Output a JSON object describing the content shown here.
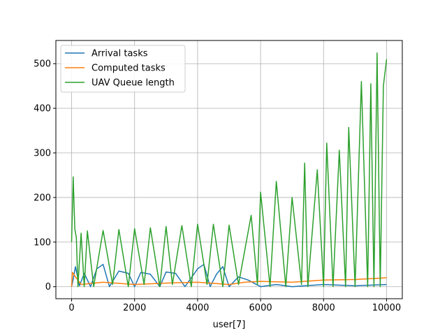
{
  "chart_data": {
    "type": "line",
    "title": "",
    "xlabel": "user[7]",
    "ylabel": "",
    "xlim": [
      -500,
      10500
    ],
    "ylim": [
      -27,
      552
    ],
    "xticks": [
      0,
      2000,
      4000,
      6000,
      8000,
      10000
    ],
    "yticks": [
      0,
      100,
      200,
      300,
      400,
      500
    ],
    "grid": true,
    "legend_position": "upper-left",
    "series": [
      {
        "name": "Arrival tasks",
        "color": "#1f77b4",
        "points": [
          [
            0,
            0
          ],
          [
            60,
            20
          ],
          [
            120,
            45
          ],
          [
            250,
            2
          ],
          [
            400,
            30
          ],
          [
            600,
            0
          ],
          [
            800,
            40
          ],
          [
            1000,
            50
          ],
          [
            1200,
            0
          ],
          [
            1500,
            35
          ],
          [
            1800,
            30
          ],
          [
            2000,
            0
          ],
          [
            2200,
            32
          ],
          [
            2500,
            28
          ],
          [
            2800,
            0
          ],
          [
            3000,
            33
          ],
          [
            3300,
            30
          ],
          [
            3600,
            0
          ],
          [
            3800,
            20
          ],
          [
            4000,
            40
          ],
          [
            4200,
            50
          ],
          [
            4400,
            0
          ],
          [
            4600,
            28
          ],
          [
            4800,
            45
          ],
          [
            5000,
            0
          ],
          [
            5300,
            22
          ],
          [
            5600,
            15
          ],
          [
            6000,
            0
          ],
          [
            6500,
            5
          ],
          [
            7000,
            0
          ],
          [
            8000,
            5
          ],
          [
            9000,
            2
          ],
          [
            10000,
            5
          ]
        ]
      },
      {
        "name": "Computed tasks",
        "color": "#ff7f0e",
        "points": [
          [
            0,
            0
          ],
          [
            30,
            32
          ],
          [
            100,
            24
          ],
          [
            300,
            5
          ],
          [
            1000,
            10
          ],
          [
            2000,
            5
          ],
          [
            3000,
            8
          ],
          [
            4000,
            10
          ],
          [
            5000,
            5
          ],
          [
            5500,
            10
          ],
          [
            6000,
            12
          ],
          [
            7000,
            10
          ],
          [
            8000,
            15
          ],
          [
            9000,
            16
          ],
          [
            10000,
            20
          ]
        ]
      },
      {
        "name": "UAV Queue length",
        "color": "#2ca02c",
        "points": [
          [
            0,
            100
          ],
          [
            50,
            246
          ],
          [
            100,
            130
          ],
          [
            150,
            110
          ],
          [
            200,
            0
          ],
          [
            300,
            120
          ],
          [
            400,
            0
          ],
          [
            500,
            125
          ],
          [
            700,
            0
          ],
          [
            1000,
            126
          ],
          [
            1300,
            5
          ],
          [
            1500,
            128
          ],
          [
            1800,
            0
          ],
          [
            2000,
            130
          ],
          [
            2300,
            5
          ],
          [
            2500,
            132
          ],
          [
            2800,
            0
          ],
          [
            3000,
            135
          ],
          [
            3200,
            5
          ],
          [
            3500,
            137
          ],
          [
            3800,
            0
          ],
          [
            4000,
            140
          ],
          [
            4300,
            5
          ],
          [
            4500,
            140
          ],
          [
            4800,
            0
          ],
          [
            5000,
            138
          ],
          [
            5300,
            5
          ],
          [
            5700,
            160
          ],
          [
            5900,
            5
          ],
          [
            6000,
            212
          ],
          [
            6300,
            0
          ],
          [
            6500,
            236
          ],
          [
            6800,
            0
          ],
          [
            7000,
            200
          ],
          [
            7300,
            5
          ],
          [
            7400,
            277
          ],
          [
            7500,
            0
          ],
          [
            7800,
            262
          ],
          [
            8000,
            0
          ],
          [
            8100,
            322
          ],
          [
            8300,
            0
          ],
          [
            8500,
            306
          ],
          [
            8700,
            0
          ],
          [
            8800,
            357
          ],
          [
            9000,
            0
          ],
          [
            9200,
            460
          ],
          [
            9400,
            0
          ],
          [
            9500,
            455
          ],
          [
            9600,
            0
          ],
          [
            9700,
            524
          ],
          [
            9800,
            0
          ],
          [
            9900,
            450
          ],
          [
            10000,
            510
          ]
        ]
      }
    ]
  }
}
